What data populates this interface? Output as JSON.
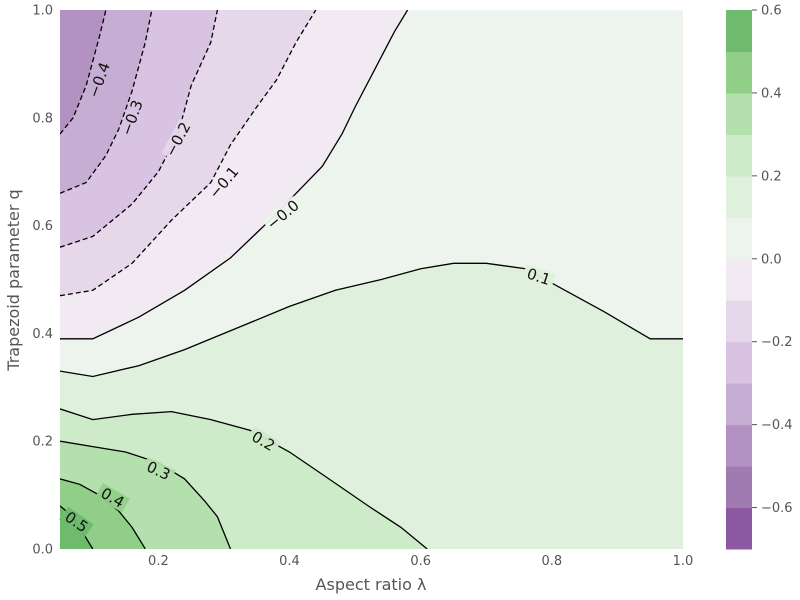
{
  "chart_data": {
    "type": "contour",
    "title": "",
    "xlabel": "Aspect ratio λ",
    "ylabel": "Trapezoid parameter q",
    "xlim": [
      0.05,
      1.0
    ],
    "ylim": [
      0.0,
      1.0
    ],
    "x_ticks": [
      0.2,
      0.4,
      0.6,
      0.8,
      1.0
    ],
    "x_tick_labels": [
      "0.2",
      "0.4",
      "0.6",
      "0.8",
      "1.0"
    ],
    "y_ticks": [
      0.0,
      0.2,
      0.4,
      0.6,
      0.8,
      1.0
    ],
    "y_tick_labels": [
      "0.0",
      "0.2",
      "0.4",
      "0.6",
      "0.8",
      "1.0"
    ],
    "grid": false,
    "colormap": "PRGn (diverging purple-green)",
    "colorbar": {
      "levels": [
        -0.7,
        -0.6,
        -0.5,
        -0.4,
        -0.3,
        -0.2,
        -0.1,
        0.0,
        0.1,
        0.2,
        0.3,
        0.4,
        0.5,
        0.6
      ],
      "colors": [
        "#8c58a2",
        "#a07bb2",
        "#b391c2",
        "#c6add3",
        "#d8c3e2",
        "#e6d7ea",
        "#f2eaf2",
        "#edf4ed",
        "#dff0dc",
        "#cdebc8",
        "#b3e0ac",
        "#91cf88",
        "#6fbb6e"
      ],
      "ticks": [
        -0.6,
        -0.4,
        -0.2,
        0.0,
        0.2,
        0.4,
        0.6
      ],
      "tick_labels": [
        "−0.6",
        "−0.4",
        "−0.2",
        "0.0",
        "0.2",
        "0.4",
        "0.6"
      ]
    },
    "contour_levels": [
      {
        "level": -0.4,
        "label": "−0.4",
        "style": "dashed",
        "points": [
          [
            0.05,
            0.77
          ],
          [
            0.07,
            0.8
          ],
          [
            0.09,
            0.86
          ],
          [
            0.11,
            0.95
          ],
          [
            0.12,
            1.0
          ]
        ]
      },
      {
        "level": -0.3,
        "label": "−0.3",
        "style": "dashed",
        "points": [
          [
            0.05,
            0.66
          ],
          [
            0.09,
            0.68
          ],
          [
            0.12,
            0.73
          ],
          [
            0.14,
            0.78
          ],
          [
            0.16,
            0.85
          ],
          [
            0.18,
            0.94
          ],
          [
            0.19,
            1.0
          ]
        ]
      },
      {
        "level": -0.2,
        "label": "−0.2",
        "style": "dashed",
        "points": [
          [
            0.05,
            0.56
          ],
          [
            0.1,
            0.58
          ],
          [
            0.16,
            0.64
          ],
          [
            0.2,
            0.7
          ],
          [
            0.23,
            0.77
          ],
          [
            0.25,
            0.86
          ],
          [
            0.28,
            0.94
          ],
          [
            0.29,
            1.0
          ]
        ]
      },
      {
        "level": -0.1,
        "label": "−0.1",
        "style": "dashed",
        "points": [
          [
            0.05,
            0.47
          ],
          [
            0.1,
            0.48
          ],
          [
            0.16,
            0.53
          ],
          [
            0.22,
            0.61
          ],
          [
            0.28,
            0.68
          ],
          [
            0.31,
            0.75
          ],
          [
            0.35,
            0.82
          ],
          [
            0.38,
            0.87
          ],
          [
            0.41,
            0.94
          ],
          [
            0.44,
            1.0
          ]
        ]
      },
      {
        "level": 0.0,
        "label": "−0.0",
        "style": "solid",
        "points": [
          [
            0.05,
            0.39
          ],
          [
            0.1,
            0.39
          ],
          [
            0.17,
            0.43
          ],
          [
            0.24,
            0.48
          ],
          [
            0.31,
            0.54
          ],
          [
            0.37,
            0.61
          ],
          [
            0.41,
            0.66
          ],
          [
            0.45,
            0.71
          ],
          [
            0.48,
            0.77
          ],
          [
            0.5,
            0.82
          ],
          [
            0.53,
            0.89
          ],
          [
            0.56,
            0.96
          ],
          [
            0.58,
            1.0
          ]
        ]
      },
      {
        "level": 0.1,
        "label": "0.1",
        "style": "solid",
        "points": [
          [
            0.05,
            0.33
          ],
          [
            0.1,
            0.32
          ],
          [
            0.17,
            0.34
          ],
          [
            0.24,
            0.37
          ],
          [
            0.32,
            0.41
          ],
          [
            0.4,
            0.45
          ],
          [
            0.47,
            0.48
          ],
          [
            0.54,
            0.5
          ],
          [
            0.6,
            0.52
          ],
          [
            0.65,
            0.53
          ],
          [
            0.7,
            0.53
          ],
          [
            0.76,
            0.52
          ],
          [
            0.82,
            0.48
          ],
          [
            0.88,
            0.44
          ],
          [
            0.95,
            0.39
          ],
          [
            1.0,
            0.39
          ]
        ]
      },
      {
        "level": 0.2,
        "label": "0.2",
        "style": "solid",
        "points": [
          [
            0.05,
            0.26
          ],
          [
            0.1,
            0.24
          ],
          [
            0.16,
            0.25
          ],
          [
            0.22,
            0.255
          ],
          [
            0.28,
            0.24
          ],
          [
            0.34,
            0.22
          ],
          [
            0.4,
            0.18
          ],
          [
            0.46,
            0.13
          ],
          [
            0.52,
            0.08
          ],
          [
            0.57,
            0.04
          ],
          [
            0.61,
            0.0
          ]
        ]
      },
      {
        "level": 0.3,
        "label": "0.3",
        "style": "solid",
        "points": [
          [
            0.05,
            0.2
          ],
          [
            0.1,
            0.19
          ],
          [
            0.15,
            0.18
          ],
          [
            0.2,
            0.16
          ],
          [
            0.24,
            0.13
          ],
          [
            0.27,
            0.09
          ],
          [
            0.29,
            0.06
          ],
          [
            0.31,
            0.0
          ]
        ]
      },
      {
        "level": 0.4,
        "label": "0.4",
        "style": "solid",
        "points": [
          [
            0.05,
            0.13
          ],
          [
            0.08,
            0.12
          ],
          [
            0.11,
            0.1
          ],
          [
            0.14,
            0.07
          ],
          [
            0.16,
            0.04
          ],
          [
            0.18,
            0.0
          ]
        ]
      },
      {
        "level": 0.5,
        "label": "0.5",
        "style": "solid",
        "points": [
          [
            0.05,
            0.08
          ],
          [
            0.07,
            0.06
          ],
          [
            0.09,
            0.02
          ],
          [
            0.1,
            0.0
          ]
        ]
      }
    ],
    "contour_labels": [
      {
        "text": "−0.4",
        "x": 0.11,
        "y": 0.87,
        "angle": -70
      },
      {
        "text": "−0.3",
        "x": 0.16,
        "y": 0.8,
        "angle": -70
      },
      {
        "text": "−0.2",
        "x": 0.23,
        "y": 0.76,
        "angle": -62
      },
      {
        "text": "−0.1",
        "x": 0.3,
        "y": 0.68,
        "angle": -50
      },
      {
        "text": "−0.0",
        "x": 0.39,
        "y": 0.62,
        "angle": -40
      },
      {
        "text": "0.1",
        "x": 0.78,
        "y": 0.505,
        "angle": 18
      },
      {
        "text": "0.2",
        "x": 0.36,
        "y": 0.2,
        "angle": 30
      },
      {
        "text": "0.3",
        "x": 0.2,
        "y": 0.145,
        "angle": 25
      },
      {
        "text": "0.4",
        "x": 0.13,
        "y": 0.095,
        "angle": 30
      },
      {
        "text": "0.5",
        "x": 0.075,
        "y": 0.05,
        "angle": 35
      }
    ]
  }
}
